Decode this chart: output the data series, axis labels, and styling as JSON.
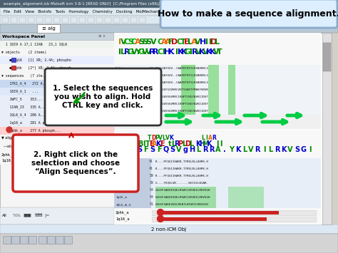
{
  "title": "How to make a sequence alignment.",
  "annotation1_text": "1. Select the sequences\nyou wish to align. Hold\nCTRL key and click.",
  "annotation2_text": "2. Right click on the\nselection and choose\n“Align Sequences”.",
  "figsize": [
    4.74,
    3.55
  ],
  "dpi": 100,
  "title_bg": "#ddeeff",
  "title_border": "#88aacc",
  "ann1_bg": "#ffffff",
  "ann1_border": "#333333",
  "ann2_bg": "#ffffff",
  "ann2_border": "#cc2222",
  "window_bar_color": "#4a6070",
  "menu_bar_color": "#dce8f0",
  "panel_bg": "#f0f0f0",
  "right_bg": "#ffffff",
  "seq_area_bg": "#e8eef8",
  "status_bar_color": "#dce8f0"
}
